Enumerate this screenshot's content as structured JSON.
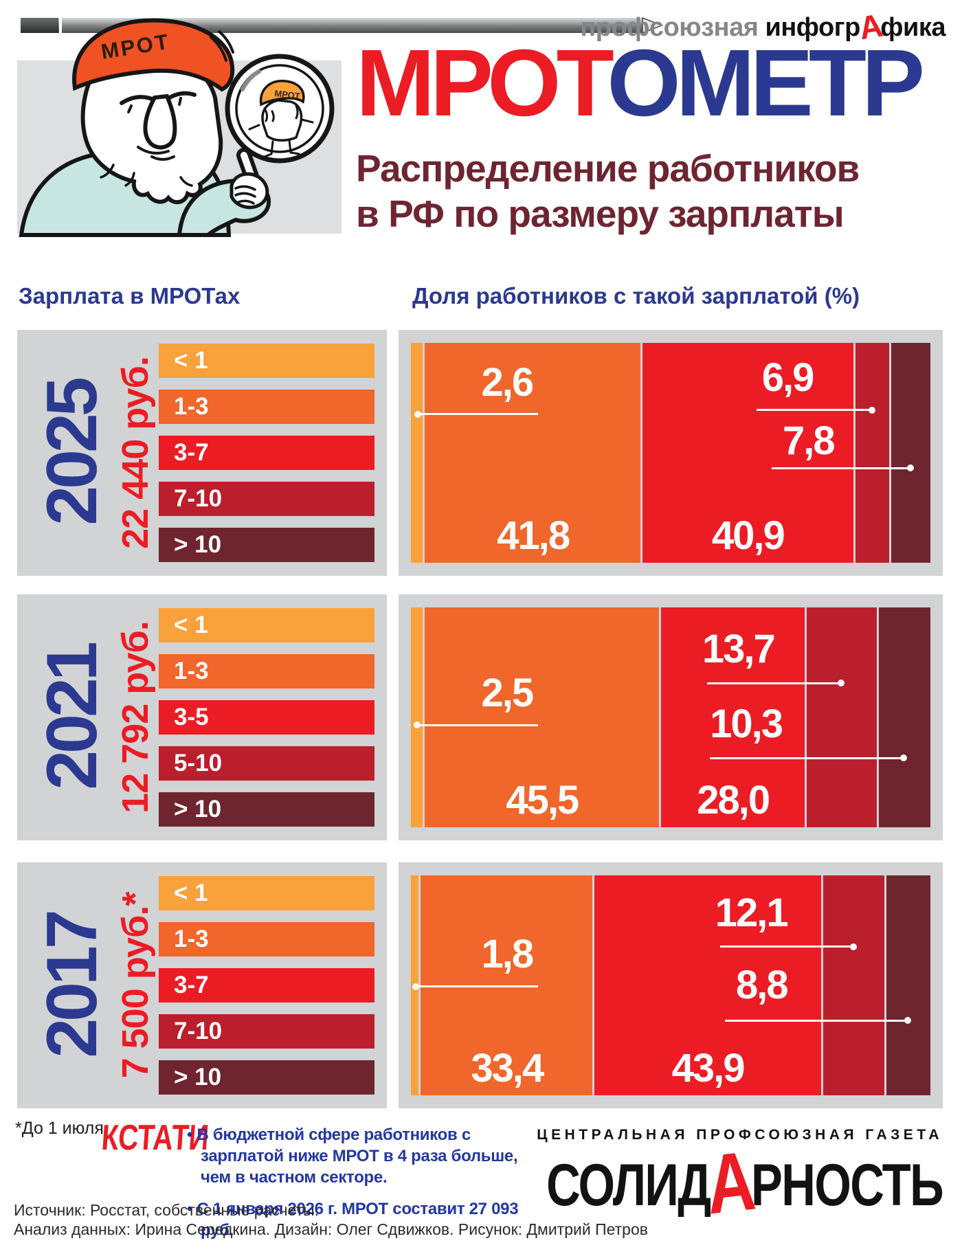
{
  "header": {
    "brand_gray": "профсоюзная",
    "brand_pre": "инфогр",
    "brand_a": "А",
    "brand_post": "фика"
  },
  "title": {
    "part_red": "МРОТ",
    "part_blue": "ОМЕТР"
  },
  "subtitle": {
    "line1": "Распределение работников",
    "line2": "в РФ по размеру зарплаты"
  },
  "cartoon": {
    "cap_text": "МРОТ",
    "lens_cap_text": "МРОТ"
  },
  "columns": {
    "left": "Зарплата в МРОТах",
    "right": "Доля работников с такой зарплатой (%)"
  },
  "colors": {
    "accent_red": "#EC1C24",
    "accent_blue": "#2B3990",
    "subtitle_maroon": "#6E2531",
    "panel_gray": "#D2D3D5",
    "bin_lt1": "#F9A13B",
    "bin_1_3": "#F0662B",
    "bin_mid": "#EC1C24",
    "bin_high": "#BB1E2C",
    "bin_gt10": "#6E2530"
  },
  "chart_data": {
    "type": "bar",
    "stacked": true,
    "orientation": "horizontal",
    "title": "МРОТОМЕТР — Распределение работников в РФ по размеру зарплаты",
    "value_axis": "Доля работников с такой зарплатой (%)",
    "category_axis": "Зарплата в МРОТах",
    "legend_position": "left",
    "value_range": [
      0,
      100
    ],
    "bars": [
      {
        "year": "2025",
        "mrot": "22 440 руб.",
        "bins": [
          "< 1",
          "1-3",
          "3-7",
          "7-10",
          "> 10"
        ],
        "values": [
          2.6,
          41.8,
          40.9,
          6.9,
          7.8
        ]
      },
      {
        "year": "2021",
        "mrot": "12 792 руб.",
        "bins": [
          "< 1",
          "1-3",
          "3-5",
          "5-10",
          "> 10"
        ],
        "values": [
          2.5,
          45.5,
          28.0,
          13.7,
          10.3
        ]
      },
      {
        "year": "2017",
        "mrot": "7 500 руб.*",
        "bins": [
          "< 1",
          "1-3",
          "3-7",
          "7-10",
          "> 10"
        ],
        "values": [
          1.8,
          33.4,
          43.9,
          12.1,
          8.8
        ]
      }
    ],
    "segment_colors": [
      "#F9A13B",
      "#F0662B",
      "#EC1C24",
      "#BB1E2C",
      "#6E2530"
    ]
  },
  "footer": {
    "footnote": "*До 1 июля.",
    "kstati": "КСТАТИ",
    "bullets": [
      "В бюджетной сфере работников с зарплатой ниже МРОТ в 4 раза больше, чем в частном секторе.",
      "С 1 января 2026 г. МРОТ составит 27 093 руб."
    ],
    "newspaper_tag": "ЦЕНТРАЛЬНАЯ ПРОФСОЮЗНАЯ ГАЗЕТА",
    "logo": {
      "pre": "СОЛИД",
      "a": "А",
      "post": "РНОСТЬ"
    },
    "source": "Источник: Росстат, собственные расчеты.",
    "credits": "Анализ данных: Ирина Середкина.  Дизайн: Олег Сдвижков. Рисунок: Дмитрий Петров"
  }
}
